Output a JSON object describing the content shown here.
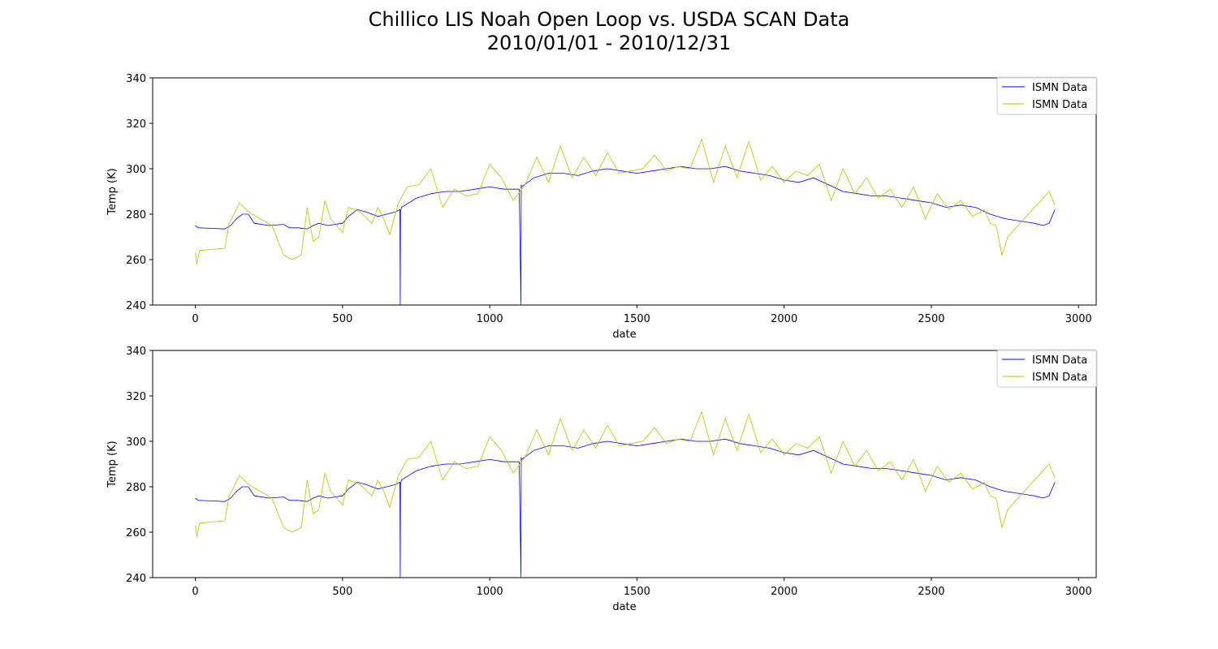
{
  "figure": {
    "title_line1": "Chillico LIS Noah Open Loop vs. USDA SCAN Data",
    "title_line2": "2010/01/01 - 2010/12/31"
  },
  "chart_data": [
    {
      "type": "line",
      "xlabel": "date",
      "ylabel": "Temp (K)",
      "xlim": [
        -145,
        3060
      ],
      "ylim": [
        240,
        340
      ],
      "xticks": [
        0,
        500,
        1000,
        1500,
        2000,
        2500,
        3000
      ],
      "yticks": [
        240,
        260,
        280,
        300,
        320,
        340
      ],
      "legend_position": "top-right",
      "series": [
        {
          "name": "ISMN Data",
          "color": "#0000ff",
          "x": [
            0,
            10,
            50,
            100,
            120,
            140,
            160,
            180,
            200,
            250,
            300,
            320,
            350,
            380,
            400,
            420,
            450,
            500,
            520,
            550,
            580,
            600,
            620,
            650,
            680,
            695,
            696,
            697,
            700,
            750,
            800,
            850,
            900,
            950,
            1000,
            1050,
            1100,
            1106,
            1107,
            1108,
            1150,
            1200,
            1250,
            1300,
            1350,
            1400,
            1450,
            1500,
            1550,
            1600,
            1650,
            1700,
            1750,
            1800,
            1850,
            1900,
            1950,
            2000,
            2050,
            2100,
            2150,
            2200,
            2250,
            2300,
            2350,
            2400,
            2450,
            2500,
            2550,
            2600,
            2650,
            2700,
            2750,
            2800,
            2850,
            2880,
            2900,
            2920
          ],
          "y": [
            275,
            274,
            273.8,
            273.5,
            275,
            278,
            280,
            280,
            276,
            275,
            275.5,
            274,
            274,
            273.5,
            275,
            276,
            275,
            276,
            279,
            282,
            281,
            280,
            279,
            280,
            281,
            282,
            240,
            281,
            283,
            287,
            289,
            290,
            290,
            291,
            292,
            291,
            291,
            240,
            293,
            292,
            296,
            298,
            298,
            297,
            299,
            300,
            299,
            298,
            299,
            300,
            301,
            300,
            300,
            301,
            299,
            298,
            297,
            295,
            294,
            296,
            293,
            290,
            289,
            288,
            288,
            287,
            286,
            285,
            283,
            284,
            283,
            280,
            278,
            277,
            276,
            275,
            276,
            282
          ]
        },
        {
          "name": "ISMN Data",
          "color": "#bfbf00",
          "x": [
            0,
            5,
            15,
            100,
            115,
            150,
            180,
            220,
            260,
            300,
            330,
            360,
            380,
            400,
            420,
            440,
            460,
            500,
            520,
            560,
            600,
            620,
            640,
            660,
            690,
            720,
            760,
            800,
            840,
            880,
            920,
            960,
            1000,
            1040,
            1080,
            1120,
            1160,
            1200,
            1240,
            1280,
            1320,
            1360,
            1400,
            1440,
            1480,
            1520,
            1560,
            1600,
            1640,
            1680,
            1720,
            1760,
            1800,
            1840,
            1880,
            1920,
            1960,
            2000,
            2040,
            2080,
            2120,
            2160,
            2200,
            2240,
            2280,
            2320,
            2360,
            2400,
            2440,
            2480,
            2520,
            2560,
            2600,
            2640,
            2680,
            2700,
            2720,
            2740,
            2760,
            2900,
            2920
          ],
          "y": [
            263,
            258,
            264,
            265,
            276,
            285,
            281,
            278,
            275,
            262,
            260,
            262,
            283,
            268,
            270,
            286,
            278,
            272,
            283,
            281,
            276,
            283,
            278,
            271,
            285,
            292,
            293,
            300,
            283,
            291,
            288,
            289,
            302,
            296,
            286,
            293,
            305,
            294,
            310,
            296,
            305,
            297,
            307,
            298,
            299,
            300,
            306,
            299,
            301,
            300,
            313,
            294,
            310,
            296,
            312,
            295,
            301,
            294,
            299,
            297,
            302,
            286,
            300,
            289,
            296,
            287,
            291,
            283,
            292,
            278,
            289,
            282,
            286,
            279,
            282,
            276,
            275,
            262,
            270,
            290,
            284
          ]
        }
      ]
    },
    {
      "type": "line",
      "xlabel": "date",
      "ylabel": "Temp (K)",
      "xlim": [
        -145,
        3060
      ],
      "ylim": [
        240,
        340
      ],
      "xticks": [
        0,
        500,
        1000,
        1500,
        2000,
        2500,
        3000
      ],
      "yticks": [
        240,
        260,
        280,
        300,
        320,
        340
      ],
      "legend_position": "top-right",
      "series": [
        {
          "name": "ISMN Data",
          "color": "#0000ff",
          "x": [
            0,
            10,
            50,
            100,
            120,
            140,
            160,
            180,
            200,
            250,
            300,
            320,
            350,
            380,
            400,
            420,
            450,
            500,
            520,
            550,
            580,
            600,
            620,
            650,
            680,
            695,
            696,
            697,
            700,
            750,
            800,
            850,
            900,
            950,
            1000,
            1050,
            1100,
            1106,
            1107,
            1108,
            1150,
            1200,
            1250,
            1300,
            1350,
            1400,
            1450,
            1500,
            1550,
            1600,
            1650,
            1700,
            1750,
            1800,
            1850,
            1900,
            1950,
            2000,
            2050,
            2100,
            2150,
            2200,
            2250,
            2300,
            2350,
            2400,
            2450,
            2500,
            2550,
            2600,
            2650,
            2700,
            2750,
            2800,
            2850,
            2880,
            2900,
            2920
          ],
          "y": [
            275,
            274,
            273.8,
            273.5,
            275,
            278,
            280,
            280,
            276,
            275,
            275.5,
            274,
            274,
            273.5,
            275,
            276,
            275,
            276,
            279,
            282,
            281,
            280,
            279,
            280,
            281,
            282,
            240,
            281,
            283,
            287,
            289,
            290,
            290,
            291,
            292,
            291,
            291,
            240,
            293,
            292,
            296,
            298,
            298,
            297,
            299,
            300,
            299,
            298,
            299,
            300,
            301,
            300,
            300,
            301,
            299,
            298,
            297,
            295,
            294,
            296,
            293,
            290,
            289,
            288,
            288,
            287,
            286,
            285,
            283,
            284,
            283,
            280,
            278,
            277,
            276,
            275,
            276,
            282
          ]
        },
        {
          "name": "ISMN Data",
          "color": "#bfbf00",
          "x": [
            0,
            5,
            15,
            100,
            115,
            150,
            180,
            220,
            260,
            300,
            330,
            360,
            380,
            400,
            420,
            440,
            460,
            500,
            520,
            560,
            600,
            620,
            640,
            660,
            690,
            720,
            760,
            800,
            840,
            880,
            920,
            960,
            1000,
            1040,
            1080,
            1120,
            1160,
            1200,
            1240,
            1280,
            1320,
            1360,
            1400,
            1440,
            1480,
            1520,
            1560,
            1600,
            1640,
            1680,
            1720,
            1760,
            1800,
            1840,
            1880,
            1920,
            1960,
            2000,
            2040,
            2080,
            2120,
            2160,
            2200,
            2240,
            2280,
            2320,
            2360,
            2400,
            2440,
            2480,
            2520,
            2560,
            2600,
            2640,
            2680,
            2700,
            2720,
            2740,
            2760,
            2900,
            2920
          ],
          "y": [
            263,
            258,
            264,
            265,
            276,
            285,
            281,
            278,
            275,
            262,
            260,
            262,
            283,
            268,
            270,
            286,
            278,
            272,
            283,
            281,
            276,
            283,
            278,
            271,
            285,
            292,
            293,
            300,
            283,
            291,
            288,
            289,
            302,
            296,
            286,
            293,
            305,
            294,
            310,
            296,
            305,
            297,
            307,
            298,
            299,
            300,
            306,
            299,
            301,
            300,
            313,
            294,
            310,
            296,
            312,
            295,
            301,
            294,
            299,
            297,
            302,
            286,
            300,
            289,
            296,
            287,
            291,
            283,
            292,
            278,
            289,
            282,
            286,
            279,
            282,
            276,
            275,
            262,
            270,
            290,
            284
          ]
        }
      ]
    }
  ]
}
